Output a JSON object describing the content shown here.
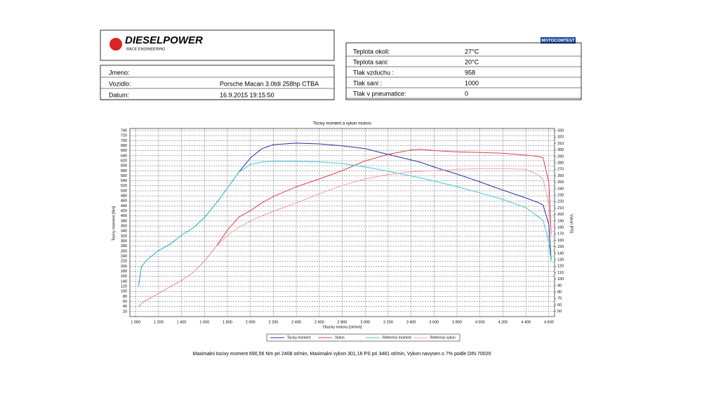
{
  "header": {
    "logo": "DIESELPOWER",
    "logo_sub": "RACE ENGINEERING",
    "badge": "MOTOCOMTEST",
    "vehicle_info": [
      [
        "Jmeno:",
        ""
      ],
      [
        "Vozidlo:",
        "Porsche Macan 3.0tdi 258hp CTBA"
      ],
      [
        "Datum:",
        "16.9.2015 19:15:50"
      ]
    ],
    "conditions": [
      [
        "Teplota okoli:",
        "27°C"
      ],
      [
        "Teplota sani:",
        "20°C"
      ],
      [
        "Tlak vzduchu :",
        "958"
      ],
      [
        "Tlak sani :",
        "1000"
      ],
      [
        "Tlak v pneumatice:",
        "0"
      ]
    ]
  },
  "chart_data": {
    "type": "line",
    "title": "Tocivy moment a vykon motoru",
    "xlabel": "Otacky motoru [ot/min]",
    "ylabel": "Tocivy moment [Nm]",
    "y2label": "Vykon [PS]",
    "x": [
      1025,
      1050,
      1100,
      1200,
      1300,
      1400,
      1500,
      1600,
      1700,
      1800,
      1900,
      2000,
      2100,
      2200,
      2400,
      2600,
      2800,
      3000,
      3200,
      3400,
      3481,
      3600,
      3800,
      4000,
      4200,
      4400,
      4500,
      4550,
      4600,
      4620
    ],
    "series": [
      {
        "name": "Tocivy moment",
        "color": "#2b2f9e",
        "axis": "y",
        "values": [
          120,
          198,
          226,
          263,
          288,
          324,
          352,
          394,
          450,
          511,
          575,
          631,
          668,
          684,
          690,
          687,
          679,
          668,
          645,
          623,
          614,
          595,
          567,
          536,
          503,
          472,
          455,
          444,
          366,
          226
        ]
      },
      {
        "name": "Vykon",
        "color": "#d9434a",
        "axis": "y2",
        "values": [
          57,
          62,
          68,
          78,
          88,
          98,
          110,
          128,
          150,
          176,
          196,
          206,
          218,
          228,
          243,
          255,
          268,
          283,
          293,
          300,
          301,
          299,
          297,
          296,
          295,
          292,
          290,
          288,
          250,
          170
        ]
      },
      {
        "name": "Referenci moment",
        "color": "#3fc8d8",
        "axis": "y",
        "values": [
          120,
          198,
          226,
          263,
          288,
          324,
          352,
          394,
          450,
          511,
          575,
          605,
          615,
          617,
          617,
          615,
          609,
          595,
          578,
          559,
          552,
          539,
          517,
          492,
          466,
          433,
          400,
          383,
          296,
          220
        ]
      },
      {
        "name": "Referenci vykon",
        "color": "#f0a0a8",
        "axis": "y2",
        "values": [
          57,
          62,
          68,
          78,
          88,
          98,
          110,
          128,
          150,
          168,
          180,
          190,
          198,
          205,
          218,
          232,
          245,
          255,
          262,
          266,
          267,
          268,
          270,
          271,
          271,
          270,
          262,
          255,
          215,
          165
        ]
      }
    ],
    "xlim": [
      950,
      4650
    ],
    "xticks": [
      {
        "value": 1000,
        "label": "1 000"
      },
      {
        "value": 1200,
        "label": "1 200"
      },
      {
        "value": 1400,
        "label": "1 400"
      },
      {
        "value": 1600,
        "label": "1 600"
      },
      {
        "value": 1800,
        "label": "1 800"
      },
      {
        "value": 2000,
        "label": "2 000"
      },
      {
        "value": 2200,
        "label": "2 200"
      },
      {
        "value": 2400,
        "label": "2 400"
      },
      {
        "value": 2600,
        "label": "2 600"
      },
      {
        "value": 2800,
        "label": "2 800"
      },
      {
        "value": 3000,
        "label": "3 000"
      },
      {
        "value": 3200,
        "label": "3 200"
      },
      {
        "value": 3400,
        "label": "3 400"
      },
      {
        "value": 3600,
        "label": "3 600"
      },
      {
        "value": 3800,
        "label": "3 800"
      },
      {
        "value": 4000,
        "label": "4 000"
      },
      {
        "value": 4200,
        "label": "4 200"
      },
      {
        "value": 4400,
        "label": "4 400"
      },
      {
        "value": 4600,
        "label": "4 600"
      }
    ],
    "ylim": [
      0,
      740
    ],
    "yticks": [
      20,
      40,
      60,
      80,
      100,
      120,
      140,
      160,
      180,
      200,
      220,
      240,
      260,
      280,
      300,
      320,
      340,
      360,
      380,
      400,
      420,
      440,
      460,
      480,
      500,
      520,
      540,
      560,
      580,
      600,
      620,
      640,
      660,
      680,
      700,
      720,
      740
    ],
    "y2lim": [
      42,
      330
    ],
    "y2ticks": [
      50,
      60,
      70,
      80,
      90,
      100,
      110,
      120,
      130,
      140,
      150,
      160,
      170,
      180,
      190,
      200,
      210,
      220,
      230,
      240,
      250,
      260,
      270,
      280,
      290,
      300,
      310,
      320,
      330
    ],
    "grid": true,
    "legend": "bottom",
    "footnote": "Maximalni tocivy moment 690,56 Nm pri 2408 ot/min,  Maximalni vykon 301,16 PS pri 3481 ot/min,  Vykon navysen o 7% podle DIN 70020"
  }
}
